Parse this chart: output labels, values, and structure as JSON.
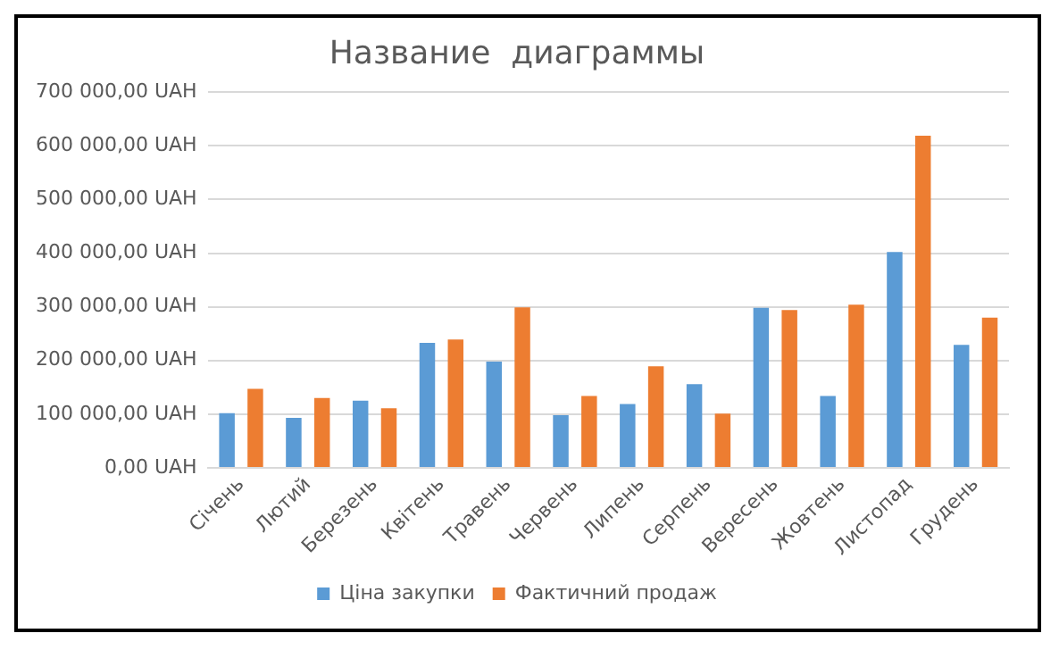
{
  "chart_data": {
    "type": "bar",
    "title": "Название  диаграммы",
    "categories": [
      "Січень",
      "Лютий",
      "Березень",
      "Квітень",
      "Травень",
      "Червень",
      "Липень",
      "Серпень",
      "Вересень",
      "Жовтень",
      "Листопад",
      "Грудень"
    ],
    "series": [
      {
        "name": "Ціна закупки",
        "color": "#5b9bd5",
        "values": [
          102000,
          93000,
          125000,
          233000,
          198000,
          98000,
          119000,
          156000,
          298000,
          134000,
          402000,
          229000
        ]
      },
      {
        "name": "Фактичний продаж",
        "color": "#ed7d31",
        "values": [
          147000,
          130000,
          111000,
          239000,
          299000,
          134000,
          189000,
          101000,
          294000,
          304000,
          619000,
          280000
        ]
      }
    ],
    "ylim": [
      0,
      700000
    ],
    "yticks": [
      {
        "value": 0,
        "label": "0,00 UAH"
      },
      {
        "value": 100000,
        "label": "100 000,00 UAH"
      },
      {
        "value": 200000,
        "label": "200 000,00 UAH"
      },
      {
        "value": 300000,
        "label": "300 000,00 UAH"
      },
      {
        "value": 400000,
        "label": "400 000,00 UAH"
      },
      {
        "value": 500000,
        "label": "500 000,00 UAH"
      },
      {
        "value": 600000,
        "label": "600 000,00 UAH"
      },
      {
        "value": 700000,
        "label": "700 000,00 UAH"
      }
    ],
    "grid": "y",
    "legend": "bottom"
  }
}
